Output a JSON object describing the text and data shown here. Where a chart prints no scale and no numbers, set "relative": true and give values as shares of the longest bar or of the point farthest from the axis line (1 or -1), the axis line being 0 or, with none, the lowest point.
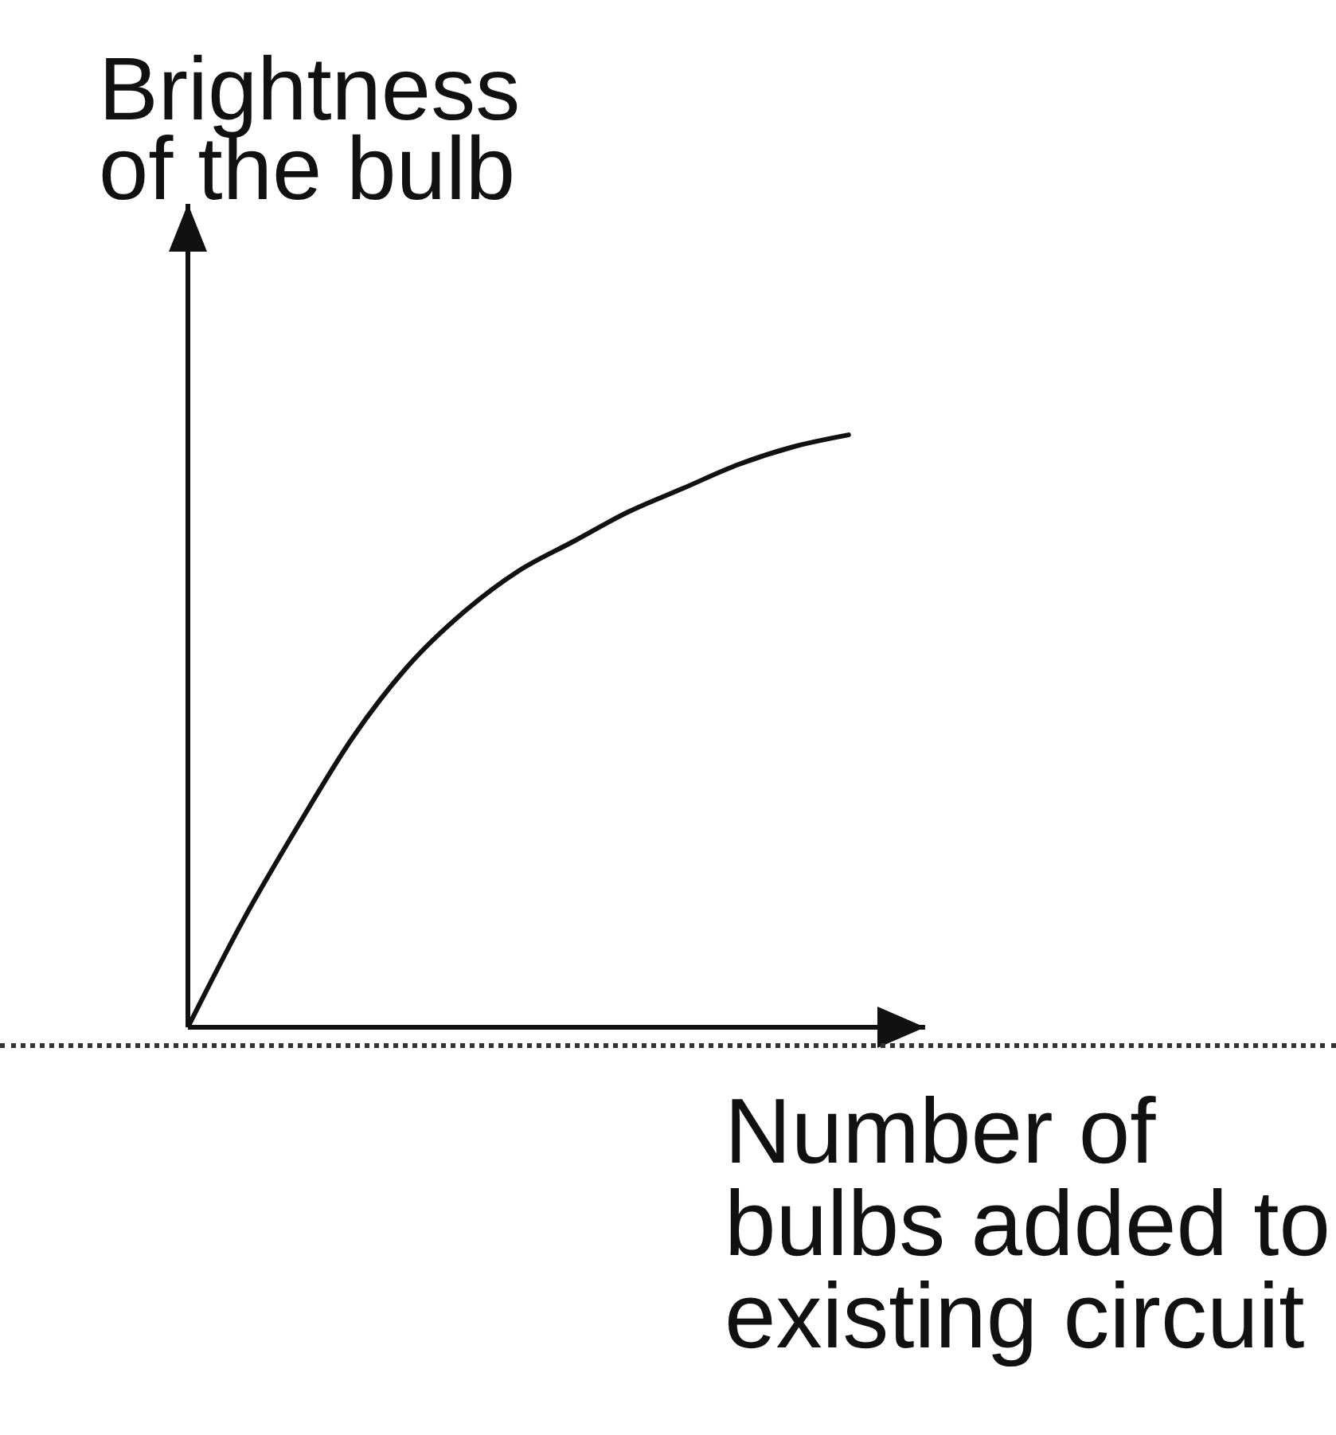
{
  "chart_data": {
    "type": "line",
    "xlabel": "Number of\nbulbs added to\nexisting circuit",
    "ylabel": "Brightness\nof the bulb",
    "categories": [
      null,
      null,
      null,
      null,
      null,
      null,
      null,
      null,
      null,
      null,
      null,
      null,
      null
    ],
    "relative": true,
    "marker": "none",
    "series": [
      {
        "color": "#111111",
        "values": [
          0,
          0.18,
          0.34,
          0.49,
          0.61,
          0.7,
          0.77,
          0.82,
          0.87,
          0.91,
          0.95,
          0.98,
          1
        ]
      }
    ]
  }
}
